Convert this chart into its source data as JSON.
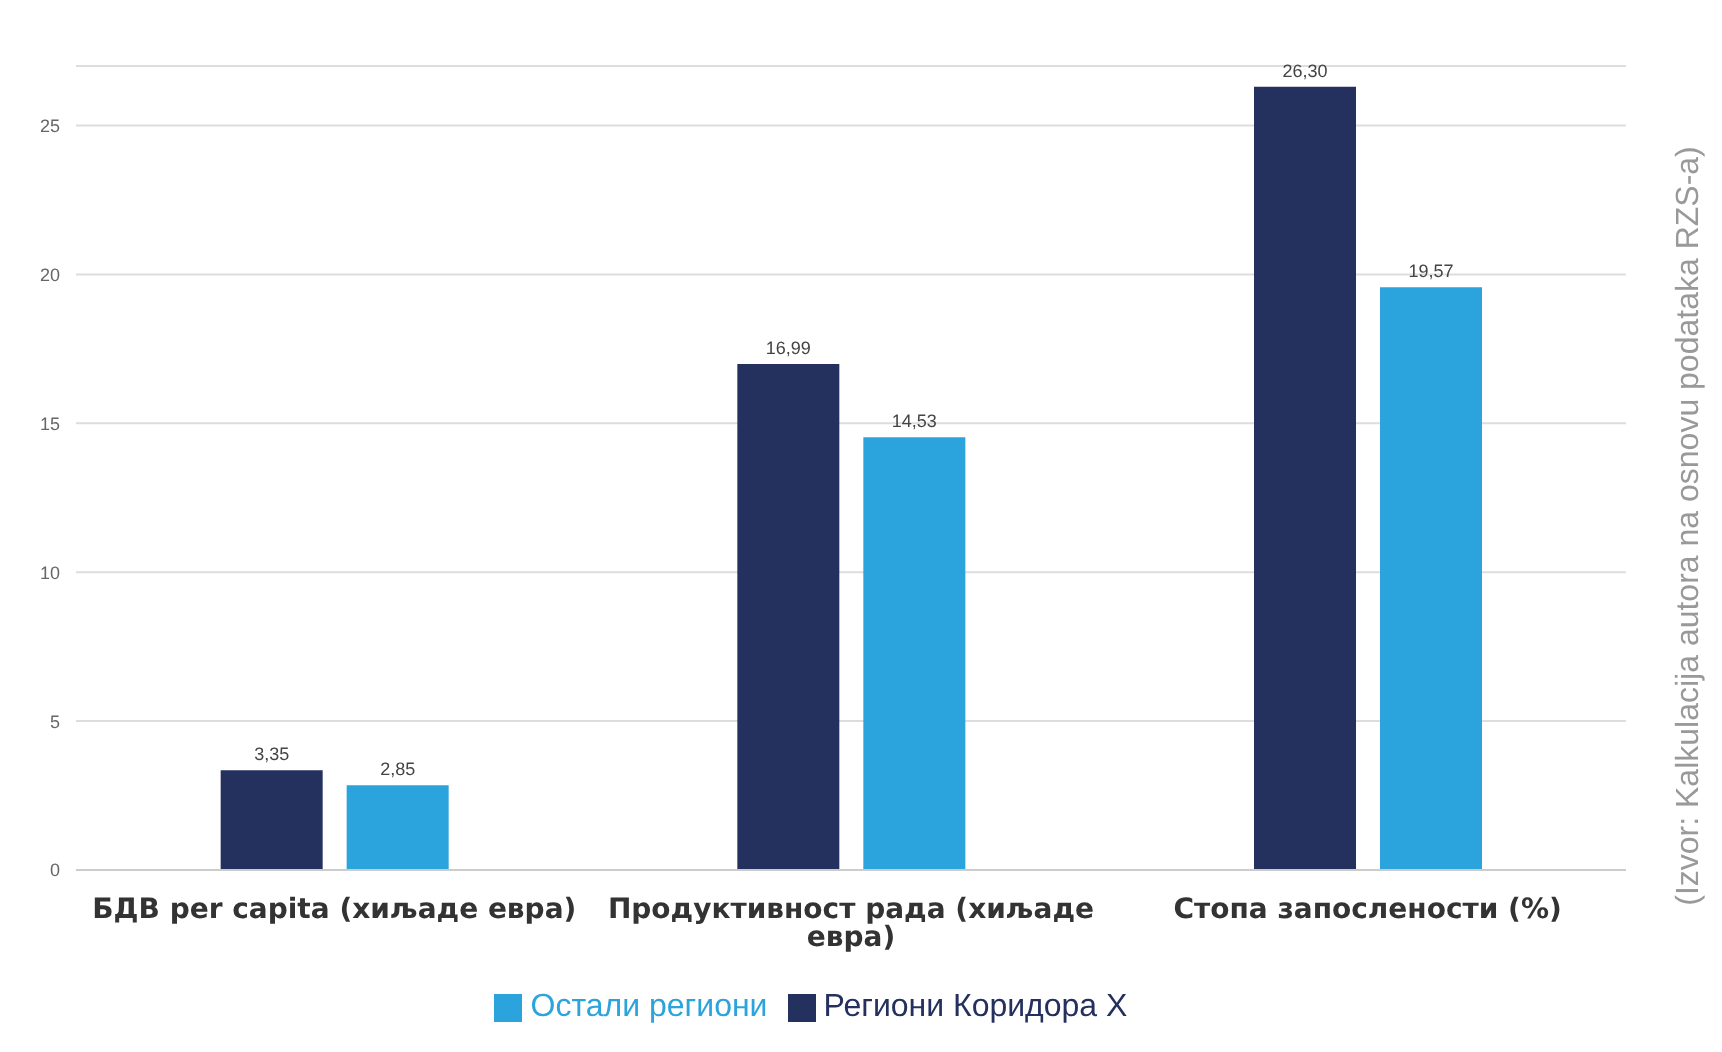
{
  "chart_data": {
    "type": "bar",
    "categories": [
      "БДВ per capita (хиљаде евра)",
      "Продуктивност рада (хиљаде евра)",
      "Стопа запослености (%)"
    ],
    "series": [
      {
        "name": "Региони Коридора X",
        "color": "#24305e",
        "values": [
          3.35,
          16.99,
          26.3
        ],
        "value_labels": [
          "3,35",
          "16,99",
          "26,30"
        ]
      },
      {
        "name": "Остали региони",
        "color": "#2ba3dc",
        "values": [
          2.85,
          14.53,
          19.57
        ],
        "value_labels": [
          "2,85",
          "14,53",
          "19,57"
        ]
      }
    ],
    "ylim": [
      0,
      27
    ],
    "yticks": [
      0,
      5,
      10,
      15,
      20,
      25
    ],
    "grid": "y",
    "legend": "bottom",
    "annotations": [
      "(Izvor: Kalkulacija autora na osnovu podataka RZS-a)"
    ]
  }
}
